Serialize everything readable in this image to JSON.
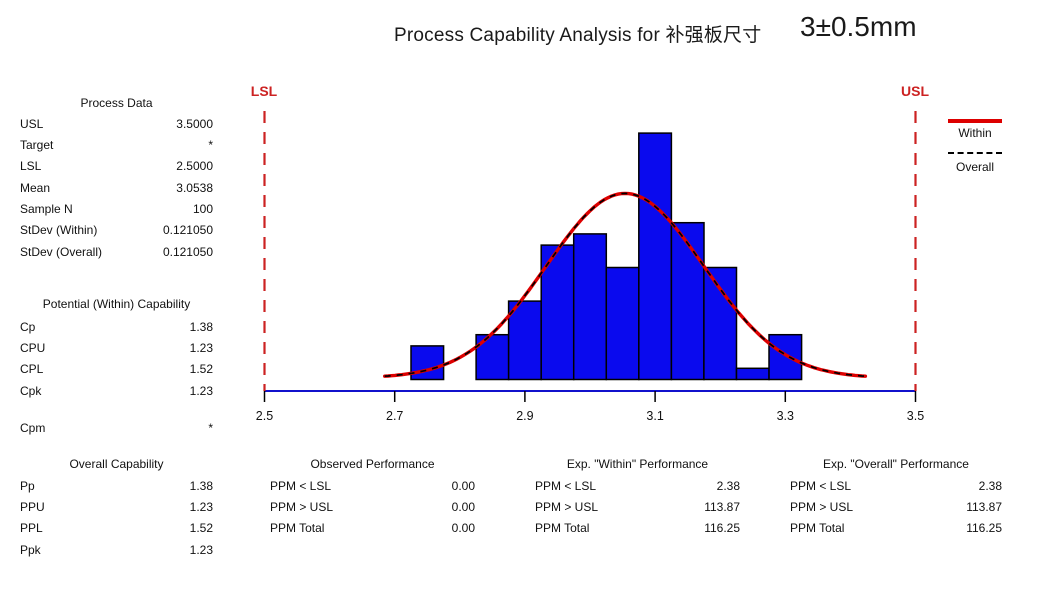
{
  "title": {
    "main": "Process Capability Analysis for 补强板尺寸",
    "spec": "3±0.5mm"
  },
  "spec_limits": {
    "lsl_label": "LSL",
    "usl_label": "USL"
  },
  "legend": {
    "within_label": "Within",
    "overall_label": "Overall"
  },
  "colors": {
    "bar_fill": "#0a0aee",
    "bar_border": "#000000",
    "axis_line": "#1111cc",
    "curve_within": "#dd0000",
    "curve_overall": "#000000",
    "spec_line": "#cc2222",
    "spec_label": "#cc2222"
  },
  "process_data": {
    "header": "Process Data",
    "rows": [
      {
        "label": "USL",
        "value": "3.5000"
      },
      {
        "label": "Target",
        "value": "*"
      },
      {
        "label": "LSL",
        "value": "2.5000"
      },
      {
        "label": "Mean",
        "value": "3.0538"
      },
      {
        "label": "Sample N",
        "value": "100"
      },
      {
        "label": "StDev (Within)",
        "value": "0.121050"
      },
      {
        "label": "StDev (Overall)",
        "value": "0.121050"
      }
    ]
  },
  "within_capability": {
    "header": "Potential (Within) Capability",
    "rows": [
      {
        "label": "Cp",
        "value": "1.38"
      },
      {
        "label": "CPU",
        "value": "1.23"
      },
      {
        "label": "CPL",
        "value": "1.52"
      },
      {
        "label": "Cpk",
        "value": "1.23"
      }
    ],
    "cpm": {
      "label": "Cpm",
      "value": "*"
    }
  },
  "overall_capability": {
    "header": "Overall Capability",
    "rows": [
      {
        "label": "Pp",
        "value": "1.38"
      },
      {
        "label": "PPU",
        "value": "1.23"
      },
      {
        "label": "PPL",
        "value": "1.52"
      },
      {
        "label": "Ppk",
        "value": "1.23"
      }
    ]
  },
  "performance_tables": [
    {
      "header": "Observed Performance",
      "rows": [
        {
          "label": "PPM < LSL",
          "value": "0.00"
        },
        {
          "label": "PPM > USL",
          "value": "0.00"
        },
        {
          "label": "PPM Total",
          "value": "0.00"
        }
      ]
    },
    {
      "header": "Exp. \"Within\" Performance",
      "rows": [
        {
          "label": "PPM < LSL",
          "value": "2.38"
        },
        {
          "label": "PPM > USL",
          "value": "113.87"
        },
        {
          "label": "PPM Total",
          "value": "116.25"
        }
      ]
    },
    {
      "header": "Exp. \"Overall\" Performance",
      "rows": [
        {
          "label": "PPM < LSL",
          "value": "2.38"
        },
        {
          "label": "PPM > USL",
          "value": "113.87"
        },
        {
          "label": "PPM Total",
          "value": "116.25"
        }
      ]
    }
  ],
  "chart_data": {
    "type": "bar",
    "subtype": "capability-histogram-with-normal-curves",
    "xlim": [
      2.5,
      3.5
    ],
    "x_ticks": [
      "2.5",
      "2.7",
      "2.9",
      "3.1",
      "3.3",
      "3.5"
    ],
    "bin_width": 0.05,
    "bin_centers": [
      2.75,
      2.8,
      2.85,
      2.9,
      2.95,
      3.0,
      3.05,
      3.1,
      3.15,
      3.2,
      3.25,
      3.3
    ],
    "counts": [
      3,
      0,
      4,
      7,
      12,
      13,
      10,
      22,
      14,
      10,
      1,
      4
    ],
    "lsl": 2.5,
    "usl": 3.5,
    "mean": 3.0538,
    "stdev_within": 0.12105,
    "stdev_overall": 0.12105,
    "sample_n": 100,
    "curves": [
      "within (red solid)",
      "overall (black dashed)"
    ],
    "legend_position": "top-right",
    "grid": false
  }
}
